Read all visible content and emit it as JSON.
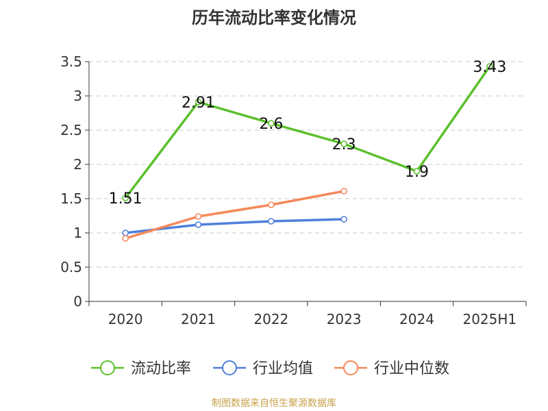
{
  "chart_data": {
    "type": "line",
    "title": "历年流动比率变化情况",
    "categories": [
      "2020",
      "2021",
      "2022",
      "2023",
      "2024",
      "2025H1"
    ],
    "ylim": [
      0,
      3.5
    ],
    "yticks": [
      "0",
      "0.5",
      "1",
      "1.5",
      "2",
      "2.5",
      "3",
      "3.5"
    ],
    "grid": true,
    "legend_position": "bottom",
    "series": [
      {
        "name": "流动比率",
        "color": "#5bbf2b",
        "values": [
          1.51,
          2.91,
          2.6,
          2.3,
          1.9,
          3.43
        ],
        "labels": [
          "1.51",
          "2.91",
          "2.6",
          "2.3",
          "1.9",
          "3.43"
        ]
      },
      {
        "name": "行业均值",
        "color": "#4f7fdb",
        "values": [
          1.0,
          1.12,
          1.17,
          1.2,
          null,
          null
        ]
      },
      {
        "name": "行业中位数",
        "color": "#f5885a",
        "values": [
          0.92,
          1.24,
          1.41,
          1.61,
          null,
          null
        ]
      }
    ]
  },
  "footer": {
    "source": "制图数据来自恒生聚源数据库"
  }
}
